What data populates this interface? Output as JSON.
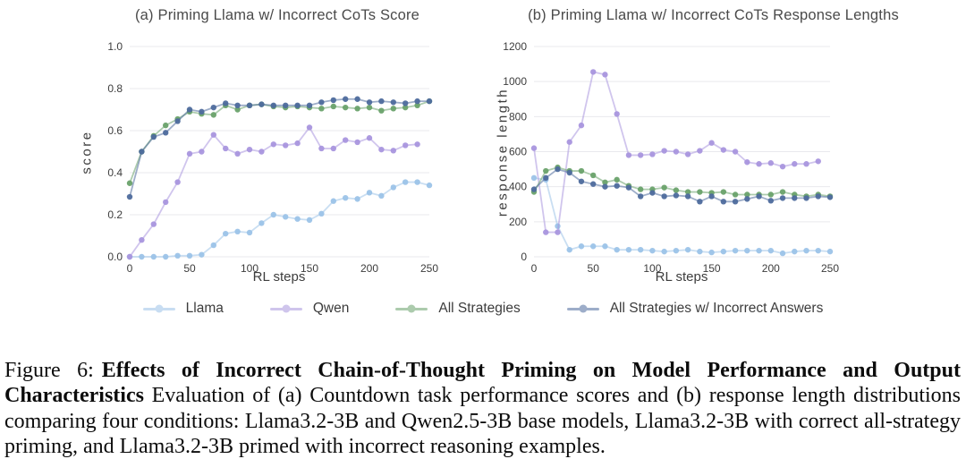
{
  "figure": {
    "caption": {
      "label": "Figure 6:",
      "bold": "Effects of Incorrect Chain-of-Thought Priming on Model Performance and Output Characteristics",
      "text": "Evaluation of (a) Countdown task performance scores and (b) response length distributions comparing four conditions: Llama3.2-3B and Qwen2.5-3B base models, Llama3.2-3B with correct all-strategy priming, and Llama3.2-3B primed with incorrect reasoning examples."
    }
  },
  "legend": {
    "position": "bottom-center",
    "items": [
      {
        "label": "Llama",
        "color": "#9cc3e8"
      },
      {
        "label": "Qwen",
        "color": "#a996de"
      },
      {
        "label": "All Strategies",
        "color": "#6aa26b"
      },
      {
        "label": "All Strategies w/ Incorrect Answers",
        "color": "#4e6b9d"
      }
    ]
  },
  "chart_data": [
    {
      "type": "line",
      "title": "(a) Priming Llama w/ Incorrect CoTs Score",
      "xlabel": "RL steps",
      "ylabel": "score",
      "xlim": [
        0,
        250
      ],
      "ylim": [
        0.0,
        1.0
      ],
      "xticks": [
        0,
        50,
        100,
        150,
        200,
        250
      ],
      "xtick_labels": [
        "0",
        "50",
        "100",
        "150",
        "200",
        "250"
      ],
      "yticks": [
        0.0,
        0.2,
        0.4,
        0.6,
        0.8,
        1.0
      ],
      "ytick_labels": [
        "0.0",
        "0.2",
        "0.4",
        "0.6",
        "0.8",
        "1.0"
      ],
      "grid": "horizontal",
      "series": [
        {
          "name": "Llama",
          "color": "#9cc3e8",
          "x": [
            0,
            10,
            20,
            30,
            40,
            50,
            60,
            70,
            80,
            90,
            100,
            110,
            120,
            130,
            140,
            150,
            160,
            170,
            180,
            190,
            200,
            210,
            220,
            230,
            240,
            250
          ],
          "y": [
            0,
            0,
            0,
            0,
            0.005,
            0.005,
            0.01,
            0.055,
            0.11,
            0.12,
            0.115,
            0.16,
            0.2,
            0.19,
            0.18,
            0.175,
            0.205,
            0.265,
            0.28,
            0.275,
            0.305,
            0.29,
            0.33,
            0.355,
            0.355,
            0.34
          ]
        },
        {
          "name": "Qwen",
          "color": "#a996de",
          "x": [
            0,
            10,
            20,
            30,
            40,
            50,
            60,
            70,
            80,
            90,
            100,
            110,
            120,
            130,
            140,
            150,
            160,
            170,
            180,
            190,
            200,
            210,
            220,
            230,
            240
          ],
          "y": [
            0,
            0.08,
            0.155,
            0.26,
            0.355,
            0.49,
            0.5,
            0.58,
            0.515,
            0.49,
            0.51,
            0.5,
            0.535,
            0.53,
            0.54,
            0.615,
            0.515,
            0.515,
            0.555,
            0.545,
            0.565,
            0.51,
            0.505,
            0.53,
            0.535
          ]
        },
        {
          "name": "All Strategies",
          "color": "#6aa26b",
          "x": [
            0,
            10,
            20,
            30,
            40,
            50,
            60,
            70,
            80,
            90,
            100,
            110,
            120,
            130,
            140,
            150,
            160,
            170,
            180,
            190,
            200,
            210,
            220,
            230,
            240,
            250
          ],
          "y": [
            0.35,
            0.5,
            0.575,
            0.625,
            0.655,
            0.69,
            0.68,
            0.675,
            0.72,
            0.7,
            0.72,
            0.725,
            0.715,
            0.71,
            0.715,
            0.71,
            0.705,
            0.715,
            0.71,
            0.705,
            0.71,
            0.695,
            0.705,
            0.71,
            0.72,
            0.74
          ]
        },
        {
          "name": "All Strategies w/ Incorrect Answers",
          "color": "#4e6b9d",
          "x": [
            0,
            10,
            20,
            30,
            40,
            50,
            60,
            70,
            80,
            90,
            100,
            110,
            120,
            130,
            140,
            150,
            160,
            170,
            180,
            190,
            200,
            210,
            220,
            230,
            240,
            250
          ],
          "y": [
            0.285,
            0.5,
            0.57,
            0.59,
            0.645,
            0.7,
            0.69,
            0.71,
            0.73,
            0.72,
            0.72,
            0.725,
            0.72,
            0.72,
            0.72,
            0.72,
            0.735,
            0.745,
            0.75,
            0.75,
            0.735,
            0.74,
            0.735,
            0.73,
            0.74,
            0.74
          ]
        }
      ]
    },
    {
      "type": "line",
      "title": "(b) Priming Llama w/ Incorrect CoTs Response Lengths",
      "xlabel": "RL steps",
      "ylabel": "response length",
      "xlim": [
        0,
        250
      ],
      "ylim": [
        0,
        1200
      ],
      "xticks": [
        0,
        50,
        100,
        150,
        200,
        250
      ],
      "xtick_labels": [
        "0",
        "50",
        "100",
        "150",
        "200",
        "250"
      ],
      "yticks": [
        0,
        200,
        400,
        600,
        800,
        1000,
        1200
      ],
      "ytick_labels": [
        "0",
        "200",
        "400",
        "600",
        "800",
        "1000",
        "1200"
      ],
      "grid": "horizontal",
      "series": [
        {
          "name": "Llama",
          "color": "#9cc3e8",
          "x": [
            0,
            10,
            20,
            30,
            40,
            50,
            60,
            70,
            80,
            90,
            100,
            110,
            120,
            130,
            140,
            150,
            160,
            170,
            180,
            190,
            200,
            210,
            220,
            230,
            240,
            250
          ],
          "y": [
            450,
            440,
            175,
            40,
            60,
            60,
            60,
            40,
            40,
            40,
            35,
            30,
            35,
            40,
            30,
            25,
            30,
            35,
            35,
            35,
            35,
            20,
            30,
            35,
            35,
            30
          ]
        },
        {
          "name": "Qwen",
          "color": "#a996de",
          "x": [
            0,
            10,
            20,
            30,
            40,
            50,
            60,
            70,
            80,
            90,
            100,
            110,
            120,
            130,
            140,
            150,
            160,
            170,
            180,
            190,
            200,
            210,
            220,
            230,
            240
          ],
          "y": [
            620,
            140,
            140,
            655,
            750,
            1055,
            1040,
            815,
            580,
            580,
            585,
            605,
            600,
            585,
            605,
            650,
            610,
            600,
            540,
            530,
            535,
            515,
            530,
            530,
            545
          ]
        },
        {
          "name": "All Strategies",
          "color": "#6aa26b",
          "x": [
            0,
            10,
            20,
            30,
            40,
            50,
            60,
            70,
            80,
            90,
            100,
            110,
            120,
            130,
            140,
            150,
            160,
            170,
            180,
            190,
            200,
            210,
            220,
            230,
            240,
            250
          ],
          "y": [
            370,
            490,
            510,
            490,
            490,
            465,
            425,
            440,
            405,
            385,
            385,
            395,
            380,
            370,
            370,
            365,
            370,
            355,
            355,
            355,
            355,
            370,
            355,
            345,
            355,
            345
          ]
        },
        {
          "name": "All Strategies w/ Incorrect Answers",
          "color": "#4e6b9d",
          "x": [
            0,
            10,
            20,
            30,
            40,
            50,
            60,
            70,
            80,
            90,
            100,
            110,
            120,
            130,
            140,
            150,
            160,
            170,
            180,
            190,
            200,
            210,
            220,
            230,
            240,
            250
          ],
          "y": [
            385,
            450,
            500,
            480,
            430,
            415,
            400,
            405,
            395,
            345,
            365,
            345,
            350,
            345,
            315,
            345,
            315,
            315,
            330,
            345,
            320,
            335,
            335,
            335,
            345,
            340
          ]
        }
      ]
    }
  ]
}
